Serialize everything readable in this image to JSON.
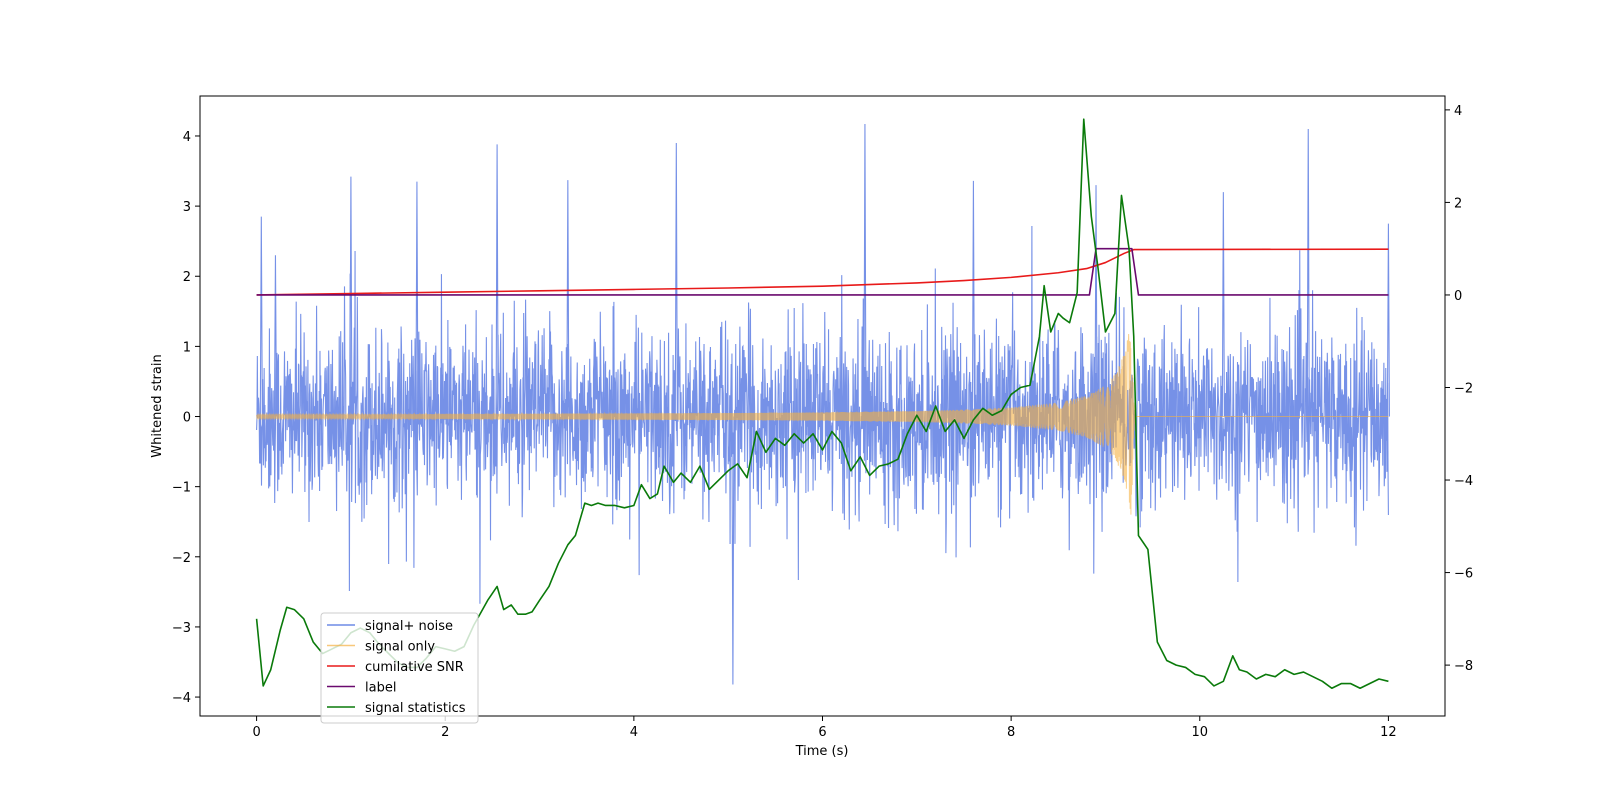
{
  "chart_data": {
    "type": "line",
    "title": "",
    "xlabel": "Time (s)",
    "ylabel": "Whitened strain",
    "y2label": "",
    "xlim": [
      -0.6,
      12.6
    ],
    "ylim": [
      -4.27,
      4.57
    ],
    "y2lim": [
      -9.1,
      4.3
    ],
    "xticks": [
      "0",
      "2",
      "4",
      "6",
      "8",
      "10",
      "12"
    ],
    "yticks": [
      "−4",
      "−3",
      "−2",
      "−1",
      "0",
      "1",
      "2",
      "3",
      "4"
    ],
    "y2ticks": [
      "−8",
      "−6",
      "−4",
      "−2",
      "0",
      "2",
      "4"
    ],
    "grid": false,
    "legend_position": "lower-left",
    "noise_band": {
      "time_range": [
        0,
        12
      ],
      "typical_range": [
        -1.6,
        1.6
      ],
      "peak_max": 4.18,
      "peak_min": -3.83
    },
    "series": [
      {
        "name": "signal+ noise",
        "axis": "left",
        "color": "#6f8be6",
        "description_points": {
          "x": [
            0.05,
            0.2,
            1.0,
            1.7,
            2.55,
            3.3,
            4.45,
            5.05,
            6.45,
            7.6,
            8.9,
            10.25,
            11.15,
            12.0
          ],
          "y": [
            2.85,
            2.3,
            3.42,
            3.35,
            3.88,
            3.37,
            3.9,
            -3.82,
            4.17,
            3.36,
            3.3,
            3.2,
            4.1,
            2.75
          ]
        }
      },
      {
        "name": "signal only",
        "axis": "left",
        "color": "#f5b041",
        "chirp_start_s": 0.0,
        "merger_s": 9.28,
        "amplitude_envelope": {
          "x": [
            0,
            1,
            2,
            3,
            4,
            5,
            6,
            6.5,
            7,
            7.5,
            8,
            8.5,
            8.8,
            9.0,
            9.1,
            9.2,
            9.25,
            9.28
          ],
          "y": [
            0.03,
            0.03,
            0.035,
            0.04,
            0.045,
            0.05,
            0.06,
            0.07,
            0.08,
            0.1,
            0.13,
            0.2,
            0.3,
            0.45,
            0.6,
            0.9,
            1.2,
            1.5
          ]
        }
      },
      {
        "name": "cumilative SNR",
        "axis": "right",
        "color": "#e81a1a",
        "x": [
          0,
          1,
          2,
          3,
          4,
          5,
          6,
          7,
          7.5,
          8,
          8.5,
          8.8,
          9.0,
          9.1,
          9.2,
          9.3,
          12
        ],
        "y": [
          0.0,
          0.03,
          0.06,
          0.09,
          0.12,
          0.15,
          0.19,
          0.26,
          0.31,
          0.38,
          0.48,
          0.57,
          0.7,
          0.8,
          0.9,
          0.98,
          0.99
        ]
      },
      {
        "name": "label",
        "axis": "right",
        "color": "#6a0a6f",
        "x": [
          0,
          8.83,
          8.9,
          9.28,
          9.35,
          12
        ],
        "y": [
          0,
          0,
          1,
          1,
          0,
          0
        ]
      },
      {
        "name": "signal statistics",
        "axis": "right",
        "color": "#0a7a0a",
        "x": [
          0,
          0.07,
          0.15,
          0.25,
          0.32,
          0.4,
          0.5,
          0.6,
          0.7,
          0.8,
          0.9,
          1.0,
          1.1,
          1.2,
          1.3,
          1.4,
          1.5,
          1.6,
          1.7,
          1.8,
          1.9,
          2.0,
          2.1,
          2.2,
          2.3,
          2.45,
          2.55,
          2.62,
          2.7,
          2.77,
          2.85,
          2.92,
          3.0,
          3.1,
          3.2,
          3.3,
          3.38,
          3.48,
          3.55,
          3.62,
          3.7,
          3.8,
          3.9,
          4.0,
          4.08,
          4.17,
          4.25,
          4.32,
          4.42,
          4.5,
          4.6,
          4.7,
          4.8,
          4.9,
          5.0,
          5.1,
          5.2,
          5.3,
          5.4,
          5.5,
          5.6,
          5.7,
          5.8,
          5.9,
          6.0,
          6.1,
          6.2,
          6.3,
          6.4,
          6.5,
          6.6,
          6.7,
          6.8,
          6.9,
          7.0,
          7.1,
          7.2,
          7.3,
          7.4,
          7.5,
          7.6,
          7.7,
          7.8,
          7.9,
          8.0,
          8.1,
          8.2,
          8.3,
          8.35,
          8.42,
          8.5,
          8.55,
          8.62,
          8.7,
          8.77,
          8.85,
          8.92,
          9.0,
          9.1,
          9.17,
          9.25,
          9.3,
          9.35,
          9.45,
          9.55,
          9.65,
          9.75,
          9.85,
          9.95,
          10.05,
          10.15,
          10.25,
          10.35,
          10.42,
          10.5,
          10.6,
          10.7,
          10.8,
          10.9,
          11.0,
          11.1,
          11.2,
          11.3,
          11.4,
          11.5,
          11.6,
          11.7,
          11.8,
          11.9,
          12.0
        ],
        "y": [
          -7.0,
          -8.45,
          -8.1,
          -7.25,
          -6.75,
          -6.8,
          -7.0,
          -7.5,
          -7.75,
          -7.65,
          -7.55,
          -7.3,
          -7.2,
          -7.3,
          -7.55,
          -7.75,
          -7.95,
          -8.05,
          -8.05,
          -7.85,
          -7.6,
          -7.65,
          -7.7,
          -7.6,
          -7.15,
          -6.6,
          -6.3,
          -6.8,
          -6.7,
          -6.9,
          -6.9,
          -6.85,
          -6.6,
          -6.3,
          -5.8,
          -5.4,
          -5.2,
          -4.5,
          -4.55,
          -4.5,
          -4.55,
          -4.55,
          -4.6,
          -4.55,
          -4.1,
          -4.4,
          -4.3,
          -3.7,
          -4.05,
          -3.85,
          -4.05,
          -3.7,
          -4.2,
          -4.0,
          -3.8,
          -3.65,
          -3.95,
          -2.95,
          -3.4,
          -3.1,
          -3.25,
          -3.0,
          -3.2,
          -3.0,
          -3.35,
          -2.95,
          -3.2,
          -3.8,
          -3.5,
          -3.9,
          -3.7,
          -3.65,
          -3.55,
          -3.0,
          -2.6,
          -2.95,
          -2.4,
          -2.95,
          -2.7,
          -3.1,
          -2.7,
          -2.45,
          -2.6,
          -2.5,
          -2.15,
          -2.0,
          -1.95,
          -0.9,
          0.2,
          -0.8,
          -0.4,
          -0.5,
          -0.6,
          0.05,
          3.8,
          1.7,
          0.6,
          -0.8,
          -0.4,
          2.15,
          1.0,
          -0.9,
          -5.2,
          -5.5,
          -7.5,
          -7.9,
          -8.0,
          -8.05,
          -8.2,
          -8.25,
          -8.45,
          -8.35,
          -7.8,
          -8.1,
          -8.15,
          -8.3,
          -8.2,
          -8.25,
          -8.1,
          -8.2,
          -8.15,
          -8.25,
          -8.35,
          -8.5,
          -8.4,
          -8.4,
          -8.5,
          -8.4,
          -8.3,
          -8.35
        ]
      }
    ]
  }
}
